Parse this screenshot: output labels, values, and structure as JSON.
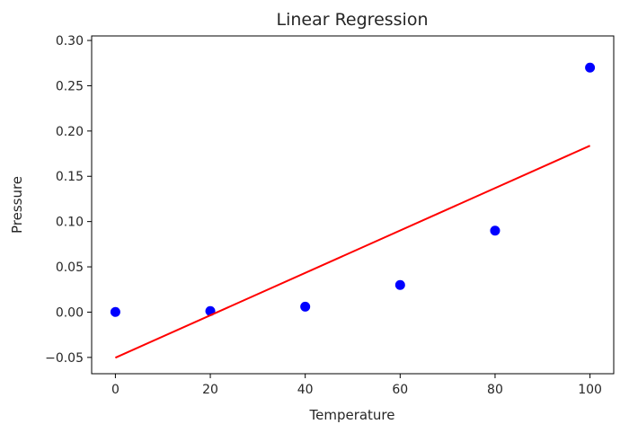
{
  "chart_data": {
    "type": "scatter",
    "title": "Linear Regression",
    "xlabel": "Temperature",
    "ylabel": "Pressure",
    "xlim": [
      -5,
      105
    ],
    "ylim": [
      -0.068,
      0.305
    ],
    "xticks": [
      0,
      20,
      40,
      60,
      80,
      100
    ],
    "xtick_labels": [
      "0",
      "20",
      "40",
      "60",
      "80",
      "100"
    ],
    "yticks": [
      -0.05,
      0.0,
      0.05,
      0.1,
      0.15,
      0.2,
      0.25,
      0.3
    ],
    "ytick_labels": [
      "−0.05",
      "0.00",
      "0.05",
      "0.10",
      "0.15",
      "0.20",
      "0.25",
      "0.30"
    ],
    "grid": false,
    "legend": "none",
    "series": [
      {
        "type": "scatter",
        "color": "#0000ff",
        "x": [
          0,
          20,
          40,
          60,
          80,
          100
        ],
        "y": [
          0.0002,
          0.0012,
          0.006,
          0.03,
          0.09,
          0.27
        ]
      },
      {
        "type": "line",
        "color": "#ff0000",
        "x": [
          0,
          100
        ],
        "y": [
          -0.0503,
          0.1838
        ]
      }
    ]
  }
}
